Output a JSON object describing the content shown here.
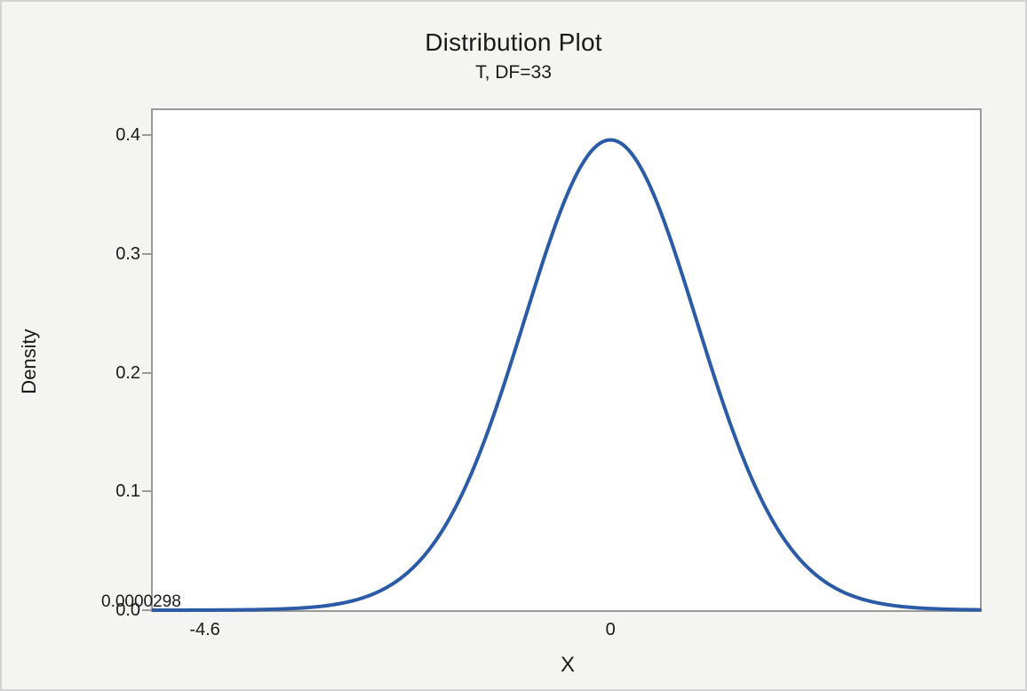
{
  "window": {
    "background_color": "#f4f4f3",
    "border_color": "#d2d2d2"
  },
  "chart": {
    "title": "Distribution Plot",
    "subtitle": "T, DF=33",
    "x_label": "X",
    "y_label": "Density",
    "annotation": "0.0000298",
    "colors": {
      "curve": "#2b5ba7",
      "spine": "#9a9a9a",
      "plot_background": "#ffffff",
      "text": "#1a1a1a"
    }
  },
  "chart_data": {
    "type": "line",
    "title": "Distribution Plot",
    "subtitle": "T, DF=33",
    "xlabel": "X",
    "ylabel": "Density",
    "legend": "none",
    "grid": false,
    "distribution": {
      "name": "t",
      "df": 33,
      "peak_density": 0.3959
    },
    "xlim": [
      -5.19,
      4.19
    ],
    "ylim": [
      0,
      0.421
    ],
    "x_ticks": [
      -4.6,
      0
    ],
    "x_tick_labels": [
      "-4.6",
      "0"
    ],
    "y_ticks": [
      0.0,
      0.1,
      0.2,
      0.3,
      0.4
    ],
    "y_tick_labels": [
      "0.0",
      "0.1",
      "0.2",
      "0.3",
      "0.4"
    ],
    "annotation": {
      "text": "0.0000298",
      "near_x": -4.6,
      "near_y": 0
    },
    "points": [
      [
        -5.19,
        1.55e-05
      ],
      [
        -5.0,
        2.71e-05
      ],
      [
        -4.6,
        8.69e-05
      ],
      [
        -4.5,
        0.000116
      ],
      [
        -4.0,
        0.000477
      ],
      [
        -3.5,
        0.00185
      ],
      [
        -3.0,
        0.00656
      ],
      [
        -2.5,
        0.0208
      ],
      [
        -2.0,
        0.0566
      ],
      [
        -1.5,
        0.129
      ],
      [
        -1.0,
        0.238
      ],
      [
        -0.5,
        0.348
      ],
      [
        0.0,
        0.396
      ],
      [
        0.5,
        0.348
      ],
      [
        1.0,
        0.238
      ],
      [
        1.5,
        0.129
      ],
      [
        2.0,
        0.0566
      ],
      [
        2.5,
        0.0208
      ],
      [
        3.0,
        0.00656
      ],
      [
        3.5,
        0.00185
      ],
      [
        4.0,
        0.000477
      ],
      [
        4.19,
        0.000281
      ]
    ]
  }
}
